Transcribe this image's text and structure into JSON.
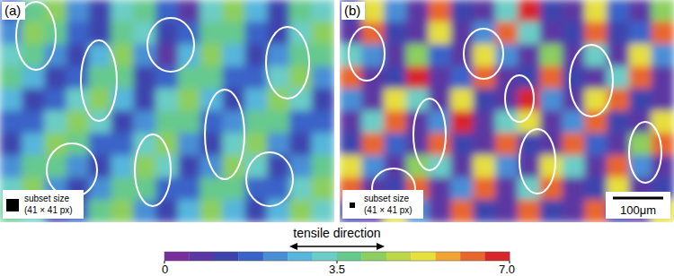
{
  "chart_data": [
    {
      "type": "heatmap",
      "title": "(a)",
      "annotations": [
        "subset size",
        "(41 × 41 px)"
      ],
      "cells": [
        [
          1.5,
          3.5,
          4,
          2,
          1,
          3,
          3.5,
          1.5,
          0.8,
          3,
          4,
          2.5,
          1.2,
          3.5,
          3
        ],
        [
          2,
          4,
          3.5,
          1.5,
          1,
          3.5,
          3,
          1,
          1.5,
          3.5,
          3.5,
          1.5,
          1,
          3,
          4
        ],
        [
          3,
          3.5,
          2,
          1,
          2.5,
          4,
          2,
          0.8,
          2.5,
          4,
          2.5,
          1,
          2,
          3.5,
          3.5
        ],
        [
          3.5,
          2.5,
          1,
          1.5,
          3.5,
          3.5,
          1.2,
          1.5,
          3.5,
          3.5,
          1.5,
          1.5,
          3,
          4,
          2
        ],
        [
          2.5,
          1.2,
          1.5,
          3,
          4,
          2.5,
          1,
          3,
          4,
          2.5,
          1,
          2.5,
          4,
          3,
          1.2
        ],
        [
          1.5,
          1.5,
          3,
          4,
          3,
          1.2,
          2,
          3.5,
          3.5,
          1.5,
          2,
          3.5,
          3.5,
          1.5,
          1.5
        ],
        [
          1.2,
          2.5,
          4,
          3.5,
          1.5,
          1.5,
          3,
          4,
          2,
          1.2,
          3,
          4,
          2,
          1.2,
          2.5
        ],
        [
          2,
          3.5,
          3.5,
          2,
          1,
          2.5,
          4,
          3,
          1,
          2,
          4,
          3,
          1,
          2,
          3.5
        ],
        [
          3,
          4,
          2,
          1.2,
          2,
          3.5,
          3.5,
          1.5,
          1.5,
          3.5,
          3.5,
          1.5,
          1.5,
          3,
          4
        ],
        [
          3.5,
          3,
          1,
          1.5,
          3.5,
          4,
          2,
          1,
          2.5,
          4,
          2.5,
          1,
          2.5,
          4,
          3
        ]
      ]
    },
    {
      "type": "heatmap",
      "title": "(b)",
      "annotations": [
        "subset size",
        "(41 × 41 px)",
        "100μm"
      ],
      "cells": [
        [
          1,
          5,
          2,
          0.5,
          6,
          1,
          0.5,
          3,
          6.5,
          1,
          0.5,
          5,
          1.5,
          0.5,
          4
        ],
        [
          0.5,
          6,
          1,
          0.8,
          5,
          0.5,
          2,
          6,
          3,
          0.5,
          1,
          6,
          1,
          1.5,
          6
        ],
        [
          3,
          2,
          0.5,
          4,
          1.5,
          0.5,
          5,
          2,
          0.5,
          4,
          0.5,
          3,
          0.5,
          5,
          2
        ],
        [
          6,
          0.8,
          1,
          6.5,
          0.5,
          1.5,
          6,
          0.5,
          1,
          6,
          1,
          0.5,
          3,
          6,
          0.5
        ],
        [
          2,
          0.5,
          5,
          3,
          0.5,
          5,
          1,
          0.5,
          6.5,
          2,
          0.5,
          5,
          6,
          1,
          0.5
        ],
        [
          0.5,
          3,
          6,
          0.5,
          2,
          6.5,
          0.5,
          3,
          5,
          0.5,
          2,
          6,
          1,
          0.5,
          5
        ],
        [
          1,
          6,
          1.5,
          0.5,
          6,
          1,
          0.5,
          6,
          1,
          0.5,
          6,
          1.5,
          0.5,
          4,
          6
        ],
        [
          5,
          2,
          0.5,
          4,
          3,
          0.5,
          5,
          2,
          0.5,
          5,
          3,
          0.5,
          6,
          2,
          0.5
        ],
        [
          6,
          0.5,
          1,
          6,
          0.5,
          2,
          6,
          0.5,
          3,
          6,
          0.5,
          1,
          5,
          0.5,
          1
        ],
        [
          1,
          0.5,
          5,
          2,
          0.5,
          6,
          1,
          0.5,
          6,
          1,
          0.5,
          6,
          1,
          0.5,
          5
        ]
      ]
    }
  ],
  "colorbar": {
    "label": "tensile direction",
    "range": [
      0,
      7
    ],
    "ticks": [
      0,
      3.5,
      {
        "value": 7,
        "label": "7.0"
      }
    ],
    "colors": [
      "#7a2e9c",
      "#5b37a3",
      "#3d45ad",
      "#3a63c8",
      "#4a8fd6",
      "#56b6dc",
      "#6ccdc6",
      "#66c98e",
      "#8ccf5e",
      "#bcd848",
      "#e6df3c",
      "#f0a432",
      "#e8662e",
      "#d8262a"
    ]
  }
}
